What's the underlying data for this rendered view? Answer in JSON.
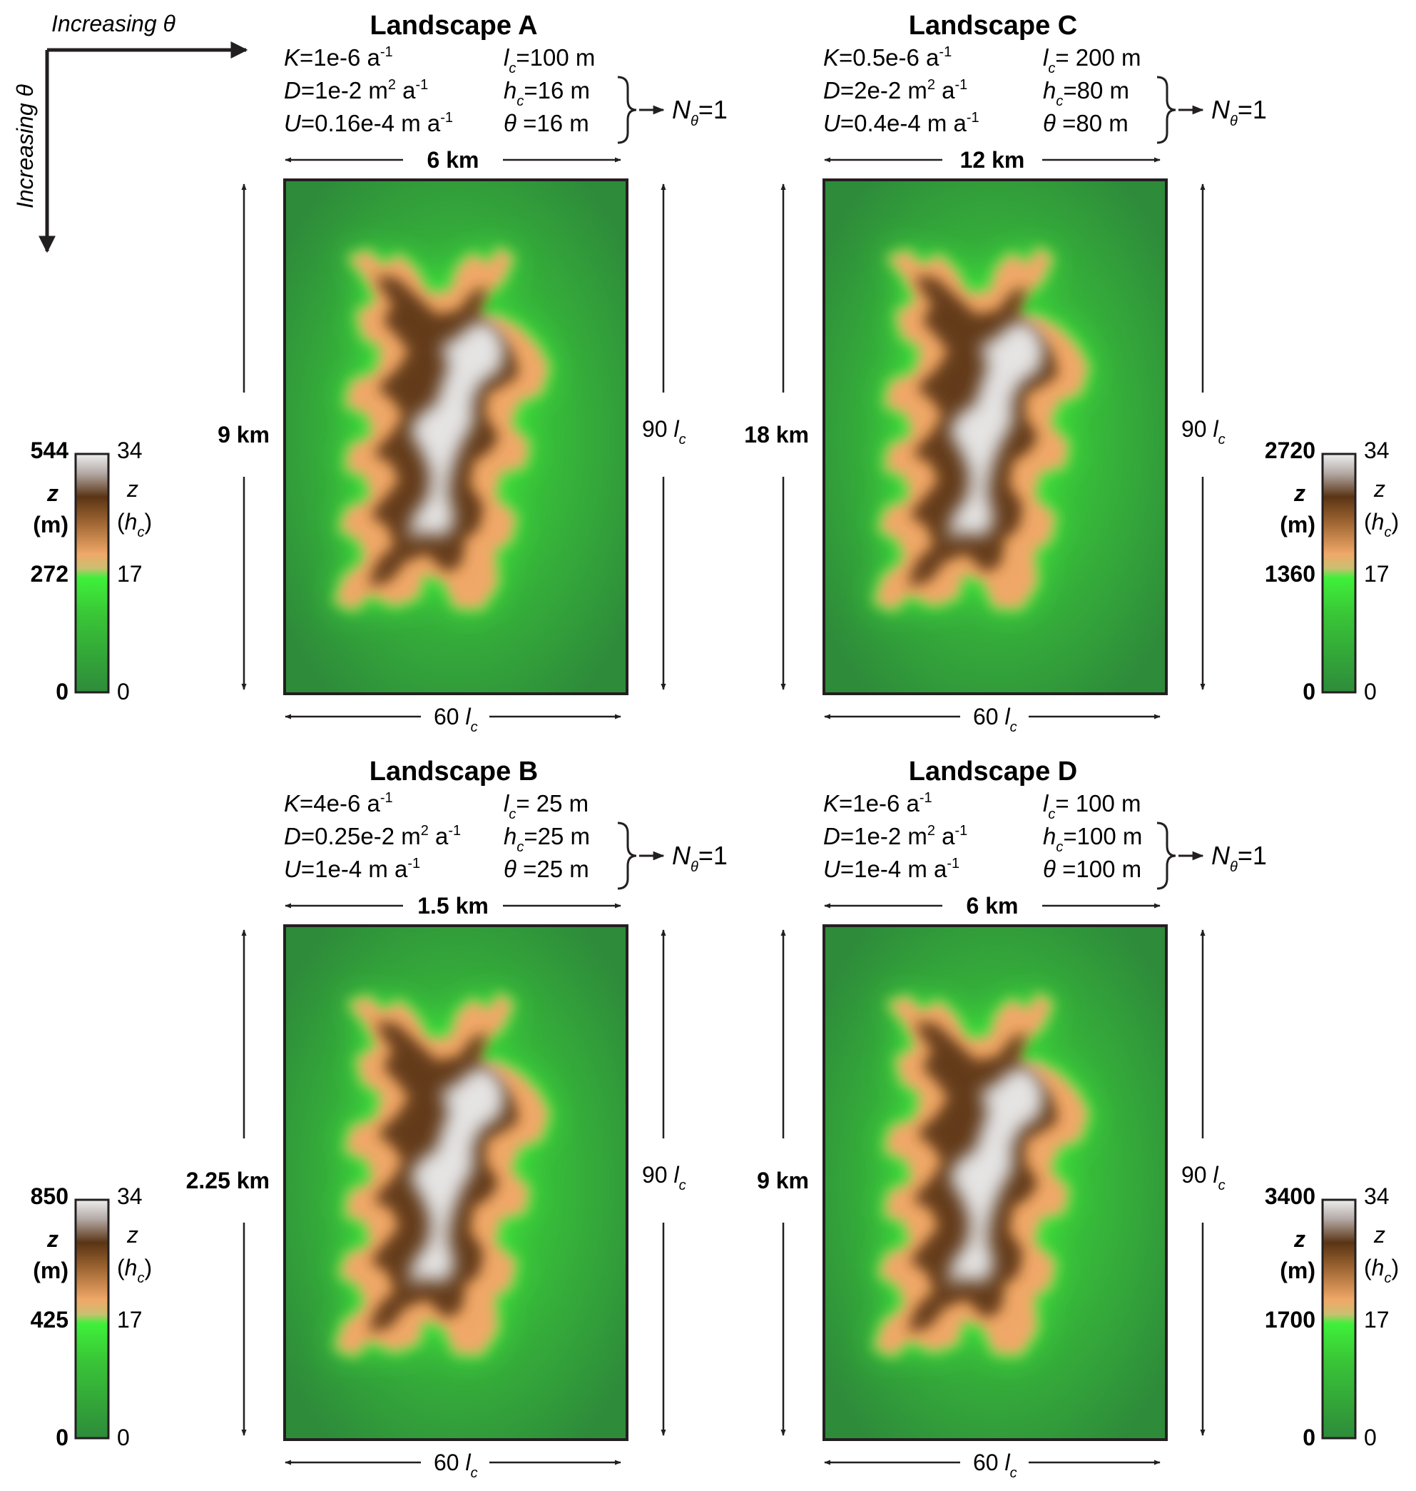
{
  "axes": {
    "horizontal_label": "Increasing θ",
    "vertical_label": "Increasing θ"
  },
  "landscapes": [
    {
      "id": "A",
      "title": "Landscape A",
      "K": "1e-6",
      "D": "1e-2",
      "U": "0.16e-4",
      "lc": "100 m",
      "hc": "16 m",
      "theta": "16 m",
      "width_label": "6 km",
      "height_label": "9 km",
      "width_lc": "60",
      "height_lc": "90",
      "ntheta": "1",
      "colorbar": {
        "z_top": "544",
        "z_mid": "272",
        "z_bottom": "0",
        "hc_top": "34",
        "hc_mid": "17",
        "hc_bottom": "0"
      }
    },
    {
      "id": "C",
      "title": "Landscape C",
      "K": "0.5e-6",
      "D": "2e-2",
      "U": "0.4e-4",
      "lc": " 200 m",
      "hc": "80 m",
      "theta": "80 m",
      "width_label": "12 km",
      "height_label": "18 km",
      "width_lc": "60",
      "height_lc": "90",
      "ntheta": "1",
      "colorbar": {
        "z_top": "2720",
        "z_mid": "1360",
        "z_bottom": "0",
        "hc_top": "34",
        "hc_mid": "17",
        "hc_bottom": "0"
      }
    },
    {
      "id": "B",
      "title": "Landscape B",
      "K": "4e-6",
      "D": "0.25e-2",
      "U": "1e-4",
      "lc": " 25 m",
      "hc": "25 m",
      "theta": "25 m",
      "width_label": "1.5 km",
      "height_label": "2.25 km",
      "width_lc": "60",
      "height_lc": "90",
      "ntheta": "1",
      "colorbar": {
        "z_top": "850",
        "z_mid": "425",
        "z_bottom": "0",
        "hc_top": "34",
        "hc_mid": "17",
        "hc_bottom": "0"
      }
    },
    {
      "id": "D",
      "title": "Landscape D",
      "K": "1e-6",
      "D": "1e-2",
      "U": "1e-4",
      "lc": " 100 m",
      "hc": "100 m",
      "theta": "100 m",
      "width_label": "6 km",
      "height_label": "9 km",
      "width_lc": "60",
      "height_lc": "90",
      "ntheta": "1",
      "colorbar": {
        "z_top": "3400",
        "z_mid": "1700",
        "z_bottom": "0",
        "hc_top": "34",
        "hc_mid": "17",
        "hc_bottom": "0"
      }
    }
  ],
  "colors": {
    "low": "#2e8b3a",
    "mid": "#3ff03a",
    "tan": "#f0a868",
    "brown": "#5a3414",
    "peak": "#eeeeee",
    "line": "#231f20"
  }
}
